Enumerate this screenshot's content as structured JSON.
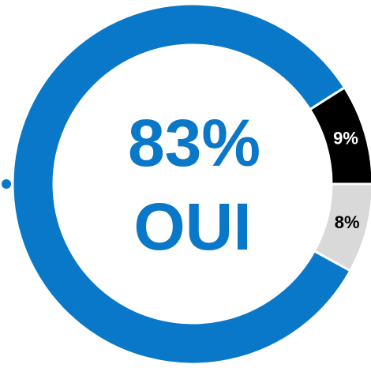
{
  "chart_data": {
    "type": "donut",
    "categories": [
      "OUI",
      null,
      null
    ],
    "values": [
      83,
      9,
      8
    ],
    "value_labels": [
      "83%",
      "9%",
      "8%"
    ],
    "colors": [
      "#0a78c8",
      "#000000",
      "#d9d9d9"
    ]
  }
}
